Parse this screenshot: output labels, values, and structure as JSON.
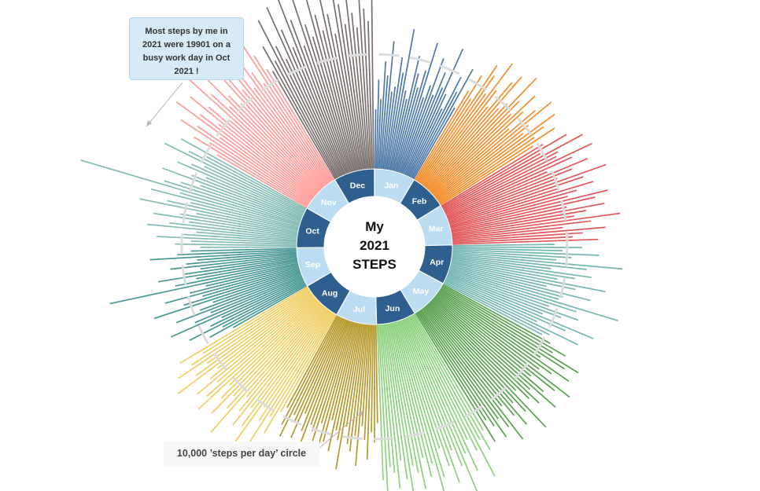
{
  "chart_data": {
    "type": "radial-bar",
    "title_lines": [
      "My",
      "2021",
      "STEPS"
    ],
    "reference_circle": {
      "value": 10000,
      "label": "10,000 ’steps per day’ circle"
    },
    "annotation": "Most steps by me in 2021 were 19901 on a busy work day in Oct 2021 !",
    "max_value": 19901,
    "months": [
      {
        "name": "Jan",
        "color": "#4e79a7",
        "band": "#bcdcf1",
        "values": [
          5200,
          7800,
          6100,
          9400,
          8200,
          11200,
          6800,
          7300,
          9900,
          8600,
          12500,
          7100,
          6400,
          10300,
          8800,
          7600,
          9200,
          11800,
          6900,
          8100,
          10700,
          7400,
          9600,
          8300,
          12100,
          7900,
          6600,
          9800,
          8500,
          10900,
          7200
        ]
      },
      {
        "name": "Feb",
        "color": "#f28e2b",
        "band": "#2f5f8f",
        "values": [
          9100,
          10800,
          8600,
          12300,
          11400,
          9700,
          13200,
          10500,
          8900,
          11900,
          12800,
          9400,
          10200,
          13600,
          11100,
          9800,
          12400,
          10700,
          8800,
          11600,
          13100,
          10300,
          9500,
          12700,
          11300,
          10100,
          12000,
          9600
        ]
      },
      {
        "name": "Mar",
        "color": "#e15759",
        "band": "#bcdcf1",
        "values": [
          10400,
          12600,
          9800,
          13800,
          11200,
          10900,
          14200,
          12100,
          9600,
          13300,
          11700,
          10200,
          14600,
          12400,
          9900,
          13100,
          11500,
          10600,
          14100,
          12900,
          10300,
          13600,
          11900,
          10800,
          14800,
          12200,
          9700,
          13400,
          11400,
          10500,
          12700
        ]
      },
      {
        "name": "Apr",
        "color": "#76b7b2",
        "band": "#2f5f8f",
        "values": [
          8900,
          11300,
          9600,
          12800,
          10400,
          9100,
          14900,
          11800,
          8700,
          12300,
          10900,
          9400,
          13700,
          11100,
          8600,
          12600,
          10200,
          9900,
          15400,
          11700,
          9300,
          12100,
          10600,
          9000,
          13900,
          11400,
          8800,
          12900,
          10300,
          9700
        ]
      },
      {
        "name": "May",
        "color": "#59a14f",
        "band": "#bcdcf1",
        "values": [
          10700,
          12400,
          11300,
          14100,
          12900,
          10600,
          13800,
          12200,
          11100,
          14700,
          13300,
          10900,
          12600,
          14300,
          11600,
          13000,
          12100,
          10800,
          14900,
          12700,
          11400,
          13600,
          12300,
          11000,
          14400,
          12800,
          11700,
          13400,
          12000,
          11200,
          13200
        ]
      },
      {
        "name": "Jun",
        "color": "#8cd17d",
        "band": "#2f5f8f",
        "values": [
          11800,
          13600,
          12400,
          15800,
          13100,
          11900,
          14700,
          12900,
          16400,
          13800,
          12200,
          15100,
          13400,
          11700,
          14200,
          17600,
          12800,
          13900,
          12100,
          14800,
          13300,
          12600,
          15500,
          13700,
          12000,
          14400,
          13000,
          12500,
          15200,
          13600
        ]
      },
      {
        "name": "Jul",
        "color": "#b6992d",
        "band": "#bcdcf1",
        "values": [
          8600,
          10300,
          9400,
          11800,
          10100,
          8900,
          12400,
          9800,
          11200,
          10600,
          9100,
          12900,
          10400,
          9600,
          11500,
          8800,
          10800,
          12100,
          9300,
          11000,
          10200,
          9700,
          12600,
          10500,
          9000,
          11400,
          10000,
          9500,
          11700,
          10700,
          9200
        ]
      },
      {
        "name": "Aug",
        "color": "#f1ce63",
        "band": "#2f5f8f",
        "values": [
          9800,
          12100,
          10600,
          13700,
          11400,
          10200,
          14300,
          12600,
          10900,
          13100,
          11800,
          10400,
          14800,
          12300,
          11100,
          13500,
          12000,
          10700,
          14100,
          12800,
          11300,
          13300,
          11600,
          10500,
          14600,
          12400,
          11000,
          13800,
          12200,
          10800,
          13000
        ]
      },
      {
        "name": "Sep",
        "color": "#499894",
        "band": "#bcdcf1",
        "values": [
          7400,
          9600,
          8200,
          11300,
          9100,
          7900,
          12600,
          10200,
          8600,
          11700,
          9400,
          8100,
          13400,
          10600,
          8800,
          12100,
          9800,
          8300,
          16800,
          10900,
          9000,
          12300,
          10000,
          8500,
          11100,
          9700,
          8700,
          12800,
          10400,
          9200
        ]
      },
      {
        "name": "Oct",
        "color": "#86bcb6",
        "band": "#2f5f8f",
        "values": [
          8400,
          10600,
          9200,
          12200,
          10100,
          8800,
          13100,
          11200,
          9500,
          12700,
          10400,
          9000,
          14100,
          11700,
          9700,
          13300,
          10800,
          19901,
          12400,
          11000,
          9300,
          12900,
          10300,
          9100,
          11900,
          10700,
          9600,
          13600,
          11400,
          9800,
          12500
        ]
      },
      {
        "name": "Nov",
        "color": "#ff9d9a",
        "band": "#bcdcf1",
        "values": [
          9100,
          11600,
          10200,
          13400,
          11900,
          9700,
          14600,
          12300,
          10500,
          13900,
          12100,
          10000,
          15800,
          12700,
          10800,
          14200,
          11500,
          10300,
          16300,
          13100,
          11100,
          14700,
          12500,
          10600,
          13700,
          11800,
          10400,
          15100,
          12900,
          11300
        ]
      },
      {
        "name": "Dec",
        "color": "#79706e",
        "band": "#2f5f8f",
        "values": [
          10900,
          13200,
          11600,
          15400,
          12700,
          11300,
          16100,
          13800,
          12000,
          17200,
          14300,
          11800,
          15900,
          13500,
          12300,
          18400,
          14100,
          12600,
          16600,
          13900,
          12100,
          15200,
          14600,
          12800,
          17800,
          13700,
          12400,
          16200,
          14000,
          12900,
          15600
        ]
      }
    ]
  }
}
